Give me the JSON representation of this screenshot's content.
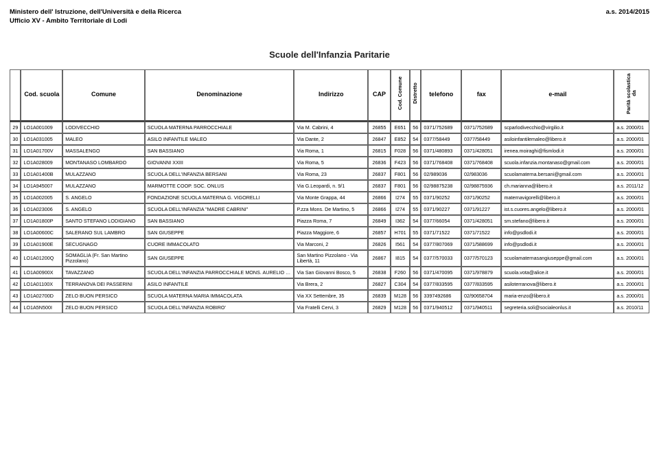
{
  "header": {
    "ministry": "Ministero dell' Istruzione, dell'Università e della Ricerca",
    "office": "Ufficio XV - Ambito Territoriale di Lodi",
    "year": "a.s. 2014/2015"
  },
  "page_title": "Scuole dell'Infanzia Paritarie",
  "columns": {
    "cod_scuola": "Cod. scuola",
    "comune": "Comune",
    "denom": "Denominazione",
    "indirizzo": "Indirizzo",
    "cap": "CAP",
    "cod_comune": "Cod. Comune",
    "distretto": "Distretto",
    "telefono": "telefono",
    "fax": "fax",
    "email": "e-mail",
    "parita": "Parità scolastica da"
  },
  "rows": [
    {
      "n": "29",
      "cod": "LO1A001009",
      "comune": "LODIVECCHIO",
      "denom": "SCUOLA MATERNA PARROCCHIALE",
      "indir": "Via M. Cabrini, 4",
      "cap": "26855",
      "cc": "E651",
      "d": "56",
      "tel": "0371/752689",
      "fax": "0371/752689",
      "email": "scparlodivecchio@virgilio.it",
      "par": "a.s. 2000/01"
    },
    {
      "n": "30",
      "cod": "LO1A031005",
      "comune": "MALEO",
      "denom": "ASILO INFANTILE MALEO",
      "indir": "Via Dante, 2",
      "cap": "26847",
      "cc": "E852",
      "d": "54",
      "tel": "0377/58449",
      "fax": "0377/58449",
      "email": "asiloinfantilemaleo@libero.it",
      "par": "a.s. 2000/01"
    },
    {
      "n": "31",
      "cod": "LO1A01700V",
      "comune": "MASSALENGO",
      "denom": "SAN BASSIANO",
      "indir": "Via Roma, 1",
      "cap": "26815",
      "cc": "F028",
      "d": "56",
      "tel": "0371/480893",
      "fax": "0371/428051",
      "email": "irenea.moiraghi@fismlodi.it",
      "par": "a.s. 2000/01"
    },
    {
      "n": "32",
      "cod": "LO1A028009",
      "comune": "MONTANASO LOMBARDO",
      "denom": "GIOVANNI XXIII",
      "indir": "Via Roma, 5",
      "cap": "26836",
      "cc": "F423",
      "d": "56",
      "tel": "0371/768408",
      "fax": "0371/768408",
      "email": "scuola.infanzia.montanaso@gmail.com",
      "par": "a.s. 2000/01"
    },
    {
      "n": "33",
      "cod": "LO1A01400B",
      "comune": "MULAZZANO",
      "denom": "SCUOLA DELL'INFANZIA BERSANI",
      "indir": "Via Roma, 23",
      "cap": "26837",
      "cc": "F801",
      "d": "56",
      "tel": "02/989036",
      "fax": "02/983036",
      "email": "scuolamaterna.bersani@gmail.com",
      "par": "a.s. 2000/01"
    },
    {
      "n": "34",
      "cod": "LO1A945007",
      "comune": "MULAZZANO",
      "denom": "MARMOTTE COOP. SOC. ONLUS",
      "indir": "Via G.Leopardi, n. 9/1",
      "cap": "26837",
      "cc": "F801",
      "d": "56",
      "tel": "02/98875238",
      "fax": "02/98875936",
      "email": "ch.marianna@libero.it",
      "par": "a.s. 2011/12"
    },
    {
      "n": "35",
      "cod": "LO1A002005",
      "comune": "S. ANGELO",
      "denom": "FONDAZIONE SCUOLA MATERNA G. VIGORELLI",
      "indir": "Via Monte Grappa, 44",
      "cap": "26866",
      "cc": "I274",
      "d": "55",
      "tel": "0371/90252",
      "fax": "0371/90252",
      "email": "maternavigorelli@libero.it",
      "par": "a.s. 2000/01"
    },
    {
      "n": "36",
      "cod": "LO1A023006",
      "comune": "S. ANGELO",
      "denom": "SCUOLA DELL'INFANZIA \"MADRE CABRINI\"",
      "indir": "P.zza Mons. De Martino, 5",
      "cap": "26866",
      "cc": "I274",
      "d": "55",
      "tel": "0371/90227",
      "fax": "0371/91227",
      "email": "ist.s.cuores.angelo@libero.it",
      "par": "a.s. 2000/01"
    },
    {
      "n": "37",
      "cod": "LO1A01800P",
      "comune": "SANTO STEFANO LODIGIANO",
      "denom": "SAN BASSIANO",
      "indir": "Piazza Roma, 7",
      "cap": "26849",
      "cc": "I362",
      "d": "54",
      "tel": "0377/66054",
      "fax": "0371/428051",
      "email": "sm.stefano@libero.it",
      "par": "a.s. 2000/01"
    },
    {
      "n": "38",
      "cod": "LO1A00600C",
      "comune": "SALERANO SUL LAMBRO",
      "denom": "SAN GIUSEPPE",
      "indir": "Piazza Maggiore, 6",
      "cap": "26857",
      "cc": "H701",
      "d": "55",
      "tel": "0371/71522",
      "fax": "0371/71522",
      "email": "info@psdlodi.it",
      "par": "a.s. 2000/01"
    },
    {
      "n": "39",
      "cod": "LO1A01900E",
      "comune": "SECUGNAGO",
      "denom": "CUORE IMMACOLATO",
      "indir": "Via Marconi, 2",
      "cap": "26826",
      "cc": "I561",
      "d": "54",
      "tel": "0377/807069",
      "fax": "0371/588699",
      "email": "info@psdlodi.it",
      "par": "a.s. 2000/01"
    },
    {
      "n": "40",
      "cod": "LO1A01200Q",
      "comune": "SOMAGLIA (Fr. San Martino Pizzolano)",
      "denom": "SAN GIUSEPPE",
      "indir": "San Martino Pizzolano - Via Libertà, 11",
      "cap": "26867",
      "cc": "I815",
      "d": "54",
      "tel": "0377/570033",
      "fax": "0377/570123",
      "email": "scuolamaternasangiuseppe@gmail.com",
      "par": "a.s. 2000/01"
    },
    {
      "n": "41",
      "cod": "LO1A00900X",
      "comune": "TAVAZZANO",
      "denom": "SCUOLA DELL'INFANZIA PARROCCHIALE MONS. AURELIO VOTA",
      "indir": "Via San Giovanni Bosco, 5",
      "cap": "26838",
      "cc": "F260",
      "d": "56",
      "tel": "0371/470095",
      "fax": "0371/978879",
      "email": "scuola.vota@alice.it",
      "par": "a.s. 2000/01"
    },
    {
      "n": "42",
      "cod": "LO1A01100X",
      "comune": "TERRANOVA DEI PASSERINI",
      "denom": "ASILO INFANTILE",
      "indir": "Via Brera, 2",
      "cap": "26827",
      "cc": "C304",
      "d": "54",
      "tel": "0377/833595",
      "fax": "0377/833595",
      "email": "asiloterranova@libero.it",
      "par": "a.s. 2000/01"
    },
    {
      "n": "43",
      "cod": "LO1A02700D",
      "comune": "ZELO BUON PERSICO",
      "denom": "SCUOLA MATERNA MARIA IMMACOLATA",
      "indir": "Via XX Settembre, 35",
      "cap": "26839",
      "cc": "M128",
      "d": "56",
      "tel": "3397492686",
      "fax": "02/90658704",
      "email": "maria-enzo@libero.it",
      "par": "a.s. 2000/01"
    },
    {
      "n": "44",
      "cod": "LO1A5N500I",
      "comune": "ZELO BUON PERSICO",
      "denom": "SCUOLA DELL'INFANZIA ROBIRO'",
      "indir": "Via Fratelli Cervi, 3",
      "cap": "26829",
      "cc": "M128",
      "d": "56",
      "tel": "0371/940512",
      "fax": "0371/940511",
      "email": "segreteria.soli@socialeonlus.it",
      "par": "a.s. 2010/11"
    }
  ]
}
